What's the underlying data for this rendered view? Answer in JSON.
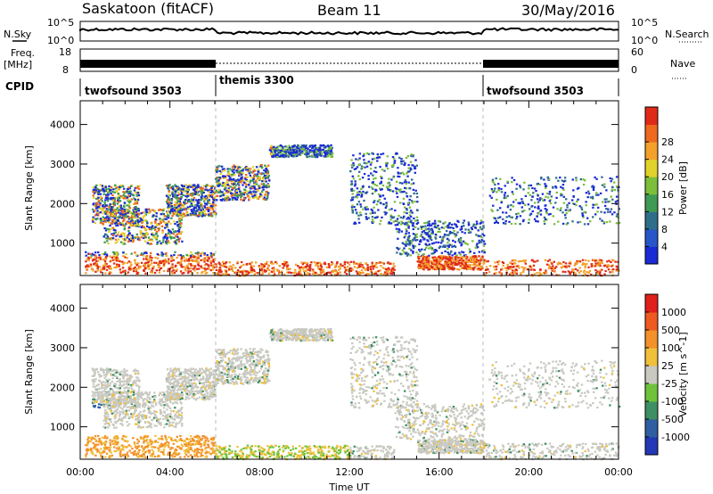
{
  "header": {
    "station": "Saskatoon (fitACF)",
    "beam": "Beam 11",
    "date": "30/May/2016"
  },
  "strips": {
    "nsky_label": "N.Sky",
    "nsky_ticks": [
      "10^5",
      "10^0"
    ],
    "nsearch_label": "N.Search",
    "nsearch_ticks": [
      "10^5",
      "10^0"
    ],
    "freq_label": "Freq.",
    "freq_unit": "[MHz]",
    "freq_ticks": [
      "18",
      "8"
    ],
    "nave_label": "Nave",
    "nave_ticks": [
      "60",
      "0"
    ],
    "cpid_label": "CPID",
    "cpid_segments": [
      {
        "name": "twofsound 3503",
        "start_hour": 0
      },
      {
        "name": "themis 3300",
        "start_hour": 6
      },
      {
        "name": "twofsound 3503",
        "start_hour": 18
      }
    ]
  },
  "chart_data": [
    {
      "type": "heatmap",
      "quantity": "power",
      "xlabel": "Time UT",
      "ylabel": "Slant Range [km]",
      "xlim": [
        0,
        24
      ],
      "ylim": [
        180,
        4600
      ],
      "x_ticks": [
        "00:00",
        "04:00",
        "08:00",
        "12:00",
        "16:00",
        "20:00",
        "00:00"
      ],
      "y_ticks": [
        1000,
        2000,
        3000,
        4000
      ],
      "colorbar": {
        "label": "Power [dB]",
        "ticks": [
          4,
          8,
          12,
          16,
          20,
          24,
          28
        ],
        "colors": [
          "#1a2bd6",
          "#2856c8",
          "#2f6e8a",
          "#3f9a54",
          "#7cbf3a",
          "#e0d22a",
          "#f3a12a",
          "#ef6a1e",
          "#e02a18"
        ]
      },
      "features": [
        {
          "name": "morning arc",
          "time_h": [
            0.5,
            8.2
          ],
          "range_km": [
            1000,
            3000
          ],
          "power_db": 20
        },
        {
          "name": "near-range echoes",
          "time_h": [
            0.2,
            18
          ],
          "range_km": [
            200,
            700
          ],
          "power_db": 24
        },
        {
          "name": "afternoon arc",
          "time_h": [
            12,
            18
          ],
          "range_km": [
            700,
            3300
          ],
          "power_db": 16
        },
        {
          "name": "evening band",
          "time_h": [
            18,
            24
          ],
          "range_km": [
            1500,
            2700
          ],
          "power_db": 12
        }
      ]
    },
    {
      "type": "heatmap",
      "quantity": "velocity",
      "xlabel": "Time UT",
      "ylabel": "Slant Range [km]",
      "xlim": [
        0,
        24
      ],
      "ylim": [
        180,
        4600
      ],
      "x_ticks": [
        "00:00",
        "04:00",
        "08:00",
        "12:00",
        "16:00",
        "20:00",
        "00:00"
      ],
      "y_ticks": [
        1000,
        2000,
        3000,
        4000
      ],
      "colorbar": {
        "label": "Velocity [m s^-1]",
        "ticks": [
          "1000",
          "500",
          "100",
          "25",
          "-25",
          "-100",
          "-500",
          "-1000"
        ],
        "colors": [
          "#2238b5",
          "#2f5fa0",
          "#3e8f63",
          "#6ec33b",
          "#c9c9c2",
          "#f0c03a",
          "#f3912a",
          "#ee5a20",
          "#e0201a"
        ]
      }
    }
  ]
}
